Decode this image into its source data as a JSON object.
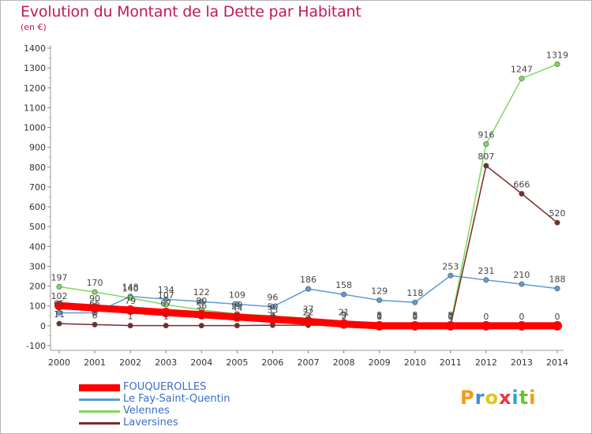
{
  "header": {
    "title": "Evolution du Montant de la Dette par Habitant",
    "subtitle": "(en €)"
  },
  "logo": {
    "text": "Proxiti",
    "letter_colors": [
      "#f39c12",
      "#3b8fd4",
      "#e8c419",
      "#e63946",
      "#2aa6c9",
      "#6cbf3a",
      "#f39c12"
    ]
  },
  "chart_data": {
    "type": "line",
    "x": [
      2000,
      2001,
      2002,
      2003,
      2004,
      2005,
      2006,
      2007,
      2008,
      2009,
      2010,
      2011,
      2012,
      2013,
      2014
    ],
    "ylim": [
      -100,
      1400
    ],
    "yticks": [
      -100,
      0,
      100,
      200,
      300,
      400,
      500,
      600,
      700,
      800,
      900,
      1000,
      1100,
      1200,
      1300,
      1400
    ],
    "grid": false,
    "legend_position": "bottom-left",
    "series": [
      {
        "name": "FOUQUEROLLES",
        "color": "#ff0000",
        "values": [
          102,
          90,
          79,
          67,
          56,
          44,
          33,
          22,
          9,
          0,
          0,
          0,
          0,
          0,
          0
        ],
        "labels": [
          "102",
          "90",
          "79",
          "67",
          "56",
          "44",
          "33",
          "22",
          "9",
          "0",
          "0",
          "0",
          "0",
          "0",
          "0"
        ]
      },
      {
        "name": "Le Fay-Saint-Quentin",
        "color": "#5b9bd5",
        "values": [
          65,
          65,
          148,
          134,
          122,
          109,
          96,
          186,
          158,
          129,
          118,
          253,
          231,
          210,
          188
        ],
        "labels": [
          "65",
          "65",
          "148",
          "134",
          "122",
          "109",
          "96",
          "186",
          "158",
          "129",
          "118",
          "253",
          "231",
          "210",
          "188"
        ]
      },
      {
        "name": "Velennes",
        "color": "#7ed957",
        "values": [
          197,
          170,
          140,
          107,
          80,
          60,
          50,
          37,
          21,
          8,
          8,
          8,
          916,
          1247,
          1319
        ],
        "labels": [
          "197",
          "170",
          "140",
          "107",
          "80",
          "60",
          "50",
          "37",
          "21",
          "8",
          "8",
          "8",
          "916",
          "1247",
          "1319"
        ]
      },
      {
        "name": "Laversines",
        "color": "#7b2a2a",
        "values": [
          11,
          6,
          1,
          1,
          1,
          1,
          3,
          3,
          3,
          1,
          1,
          1,
          807,
          666,
          520
        ],
        "labels": [
          "11",
          "6",
          "1",
          "1",
          "1",
          "1",
          "3",
          "3",
          "3",
          "1",
          "1",
          "1",
          "807",
          "666",
          "520"
        ]
      }
    ]
  }
}
